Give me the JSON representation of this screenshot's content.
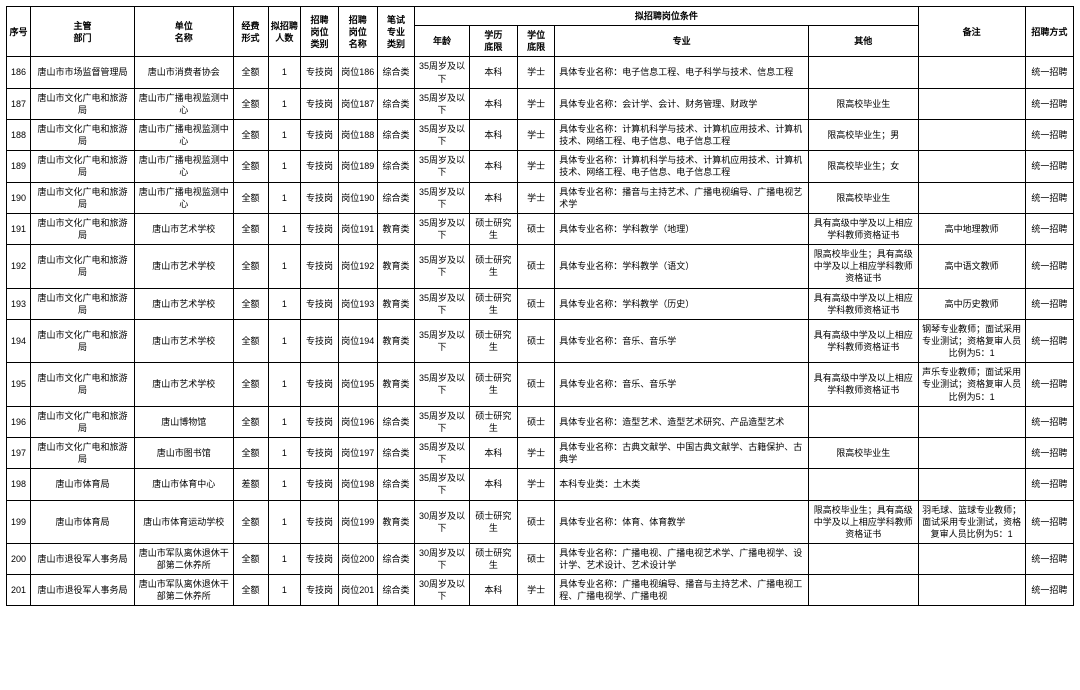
{
  "colors": {
    "border": "#000000",
    "background": "#ffffff",
    "text": "#000000"
  },
  "header": {
    "seq": "序号",
    "dept": "主管\n部门",
    "unit": "单位\n名称",
    "fund": "经费\n形式",
    "cnt": "拟招聘\n人数",
    "cat": "招聘\n岗位\n类别",
    "pos": "招聘\n岗位\n名称",
    "exam": "笔试\n专业\n类别",
    "cond_group": "拟招聘岗位条件",
    "age": "年龄",
    "edu": "学历\n底限",
    "deg": "学位\n底限",
    "maj": "专业",
    "other": "其他",
    "note": "备注",
    "mode": "招聘方式"
  },
  "rows": [
    {
      "seq": "186",
      "dept": "唐山市市场监督管理局",
      "unit": "唐山市消费者协会",
      "fund": "全额",
      "cnt": "1",
      "cat": "专技岗",
      "pos": "岗位186",
      "exam": "综合类",
      "age": "35周岁及以下",
      "edu": "本科",
      "deg": "学士",
      "maj": "具体专业名称：电子信息工程、电子科学与技术、信息工程",
      "other": "",
      "note": "",
      "mode": "统一招聘"
    },
    {
      "seq": "187",
      "dept": "唐山市文化广电和旅游局",
      "unit": "唐山市广播电视监测中心",
      "fund": "全额",
      "cnt": "1",
      "cat": "专技岗",
      "pos": "岗位187",
      "exam": "综合类",
      "age": "35周岁及以下",
      "edu": "本科",
      "deg": "学士",
      "maj": "具体专业名称：会计学、会计、财务管理、财政学",
      "other": "限高校毕业生",
      "note": "",
      "mode": "统一招聘"
    },
    {
      "seq": "188",
      "dept": "唐山市文化广电和旅游局",
      "unit": "唐山市广播电视监测中心",
      "fund": "全额",
      "cnt": "1",
      "cat": "专技岗",
      "pos": "岗位188",
      "exam": "综合类",
      "age": "35周岁及以下",
      "edu": "本科",
      "deg": "学士",
      "maj": "具体专业名称：计算机科学与技术、计算机应用技术、计算机技术、网络工程、电子信息、电子信息工程",
      "other": "限高校毕业生；男",
      "note": "",
      "mode": "统一招聘"
    },
    {
      "seq": "189",
      "dept": "唐山市文化广电和旅游局",
      "unit": "唐山市广播电视监测中心",
      "fund": "全额",
      "cnt": "1",
      "cat": "专技岗",
      "pos": "岗位189",
      "exam": "综合类",
      "age": "35周岁及以下",
      "edu": "本科",
      "deg": "学士",
      "maj": "具体专业名称：计算机科学与技术、计算机应用技术、计算机技术、网络工程、电子信息、电子信息工程",
      "other": "限高校毕业生；女",
      "note": "",
      "mode": "统一招聘"
    },
    {
      "seq": "190",
      "dept": "唐山市文化广电和旅游局",
      "unit": "唐山市广播电视监测中心",
      "fund": "全额",
      "cnt": "1",
      "cat": "专技岗",
      "pos": "岗位190",
      "exam": "综合类",
      "age": "35周岁及以下",
      "edu": "本科",
      "deg": "学士",
      "maj": "具体专业名称：播音与主持艺术、广播电视编导、广播电视艺术学",
      "other": "限高校毕业生",
      "note": "",
      "mode": "统一招聘"
    },
    {
      "seq": "191",
      "dept": "唐山市文化广电和旅游局",
      "unit": "唐山市艺术学校",
      "fund": "全额",
      "cnt": "1",
      "cat": "专技岗",
      "pos": "岗位191",
      "exam": "教育类",
      "age": "35周岁及以下",
      "edu": "硕士研究生",
      "deg": "硕士",
      "maj": "具体专业名称：学科教学（地理）",
      "other": "具有高级中学及以上相应学科教师资格证书",
      "note": "高中地理教师",
      "mode": "统一招聘"
    },
    {
      "seq": "192",
      "dept": "唐山市文化广电和旅游局",
      "unit": "唐山市艺术学校",
      "fund": "全额",
      "cnt": "1",
      "cat": "专技岗",
      "pos": "岗位192",
      "exam": "教育类",
      "age": "35周岁及以下",
      "edu": "硕士研究生",
      "deg": "硕士",
      "maj": "具体专业名称：学科教学（语文）",
      "other": "限高校毕业生；具有高级中学及以上相应学科教师资格证书",
      "note": "高中语文教师",
      "mode": "统一招聘"
    },
    {
      "seq": "193",
      "dept": "唐山市文化广电和旅游局",
      "unit": "唐山市艺术学校",
      "fund": "全额",
      "cnt": "1",
      "cat": "专技岗",
      "pos": "岗位193",
      "exam": "教育类",
      "age": "35周岁及以下",
      "edu": "硕士研究生",
      "deg": "硕士",
      "maj": "具体专业名称：学科教学（历史）",
      "other": "具有高级中学及以上相应学科教师资格证书",
      "note": "高中历史教师",
      "mode": "统一招聘"
    },
    {
      "seq": "194",
      "dept": "唐山市文化广电和旅游局",
      "unit": "唐山市艺术学校",
      "fund": "全额",
      "cnt": "1",
      "cat": "专技岗",
      "pos": "岗位194",
      "exam": "教育类",
      "age": "35周岁及以下",
      "edu": "硕士研究生",
      "deg": "硕士",
      "maj": "具体专业名称：音乐、音乐学",
      "other": "具有高级中学及以上相应学科教师资格证书",
      "note": "钢琴专业教师；面试采用专业测试；资格复审人员比例为5：1",
      "mode": "统一招聘"
    },
    {
      "seq": "195",
      "dept": "唐山市文化广电和旅游局",
      "unit": "唐山市艺术学校",
      "fund": "全额",
      "cnt": "1",
      "cat": "专技岗",
      "pos": "岗位195",
      "exam": "教育类",
      "age": "35周岁及以下",
      "edu": "硕士研究生",
      "deg": "硕士",
      "maj": "具体专业名称：音乐、音乐学",
      "other": "具有高级中学及以上相应学科教师资格证书",
      "note": "声乐专业教师；面试采用专业测试；资格复审人员比例为5：1",
      "mode": "统一招聘"
    },
    {
      "seq": "196",
      "dept": "唐山市文化广电和旅游局",
      "unit": "唐山博物馆",
      "fund": "全额",
      "cnt": "1",
      "cat": "专技岗",
      "pos": "岗位196",
      "exam": "综合类",
      "age": "35周岁及以下",
      "edu": "硕士研究生",
      "deg": "硕士",
      "maj": "具体专业名称：造型艺术、造型艺术研究、产品造型艺术",
      "other": "",
      "note": "",
      "mode": "统一招聘"
    },
    {
      "seq": "197",
      "dept": "唐山市文化广电和旅游局",
      "unit": "唐山市图书馆",
      "fund": "全额",
      "cnt": "1",
      "cat": "专技岗",
      "pos": "岗位197",
      "exam": "综合类",
      "age": "35周岁及以下",
      "edu": "本科",
      "deg": "学士",
      "maj": "具体专业名称：古典文献学、中国古典文献学、古籍保护、古典学",
      "other": "限高校毕业生",
      "note": "",
      "mode": "统一招聘"
    },
    {
      "seq": "198",
      "dept": "唐山市体育局",
      "unit": "唐山市体育中心",
      "fund": "差额",
      "cnt": "1",
      "cat": "专技岗",
      "pos": "岗位198",
      "exam": "综合类",
      "age": "35周岁及以下",
      "edu": "本科",
      "deg": "学士",
      "maj": "本科专业类：土木类",
      "other": "",
      "note": "",
      "mode": "统一招聘"
    },
    {
      "seq": "199",
      "dept": "唐山市体育局",
      "unit": "唐山市体育运动学校",
      "fund": "全额",
      "cnt": "1",
      "cat": "专技岗",
      "pos": "岗位199",
      "exam": "教育类",
      "age": "30周岁及以下",
      "edu": "硕士研究生",
      "deg": "硕士",
      "maj": "具体专业名称：体育、体育教学",
      "other": "限高校毕业生；具有高级中学及以上相应学科教师资格证书",
      "note": "羽毛球、篮球专业教师；面试采用专业测试，资格复审人员比例为5：1",
      "mode": "统一招聘"
    },
    {
      "seq": "200",
      "dept": "唐山市退役军人事务局",
      "unit": "唐山市军队离休退休干部第二休养所",
      "fund": "全额",
      "cnt": "1",
      "cat": "专技岗",
      "pos": "岗位200",
      "exam": "综合类",
      "age": "30周岁及以下",
      "edu": "硕士研究生",
      "deg": "硕士",
      "maj": "具体专业名称：广播电视、广播电视艺术学、广播电视学、设计学、艺术设计、艺术设计学",
      "other": "",
      "note": "",
      "mode": "统一招聘"
    },
    {
      "seq": "201",
      "dept": "唐山市退役军人事务局",
      "unit": "唐山市军队离休退休干部第二休养所",
      "fund": "全额",
      "cnt": "1",
      "cat": "专技岗",
      "pos": "岗位201",
      "exam": "综合类",
      "age": "30周岁及以下",
      "edu": "本科",
      "deg": "学士",
      "maj": "具体专业名称：广播电视编导、播音与主持艺术、广播电视工程、广播电视学、广播电视",
      "other": "",
      "note": "",
      "mode": "统一招聘"
    }
  ]
}
